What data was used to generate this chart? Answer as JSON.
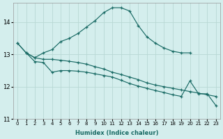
{
  "xlabel": "Humidex (Indice chaleur)",
  "ylabel": "",
  "background_color": "#d4eeed",
  "grid_color": "#b8d8d5",
  "line_color": "#1a6b65",
  "xlim": [
    -0.5,
    23.5
  ],
  "ylim": [
    11.0,
    14.6
  ],
  "yticks": [
    11,
    12,
    13,
    14
  ],
  "xticks": [
    0,
    1,
    2,
    3,
    4,
    5,
    6,
    7,
    8,
    9,
    10,
    11,
    12,
    13,
    14,
    15,
    16,
    17,
    18,
    19,
    20,
    21,
    22,
    23
  ],
  "line1_x": [
    0,
    1,
    2,
    3,
    4,
    5,
    6,
    7,
    8,
    9,
    10,
    11,
    12,
    13,
    14,
    15,
    16,
    17,
    18,
    19,
    20
  ],
  "line1_y": [
    13.35,
    13.05,
    12.9,
    13.05,
    13.15,
    13.4,
    13.5,
    13.65,
    13.85,
    14.05,
    14.3,
    14.45,
    14.45,
    14.35,
    13.9,
    13.55,
    13.35,
    13.2,
    13.1,
    13.05,
    13.05
  ],
  "line2_x": [
    0,
    1,
    2,
    3,
    4,
    5,
    6,
    7,
    8,
    9,
    10,
    11,
    12,
    13,
    14,
    15,
    16,
    17,
    18,
    19,
    20,
    21,
    22,
    23
  ],
  "line2_y": [
    13.35,
    13.05,
    12.9,
    12.85,
    12.85,
    12.82,
    12.79,
    12.75,
    12.7,
    12.62,
    12.55,
    12.45,
    12.38,
    12.3,
    12.22,
    12.12,
    12.05,
    12.0,
    11.95,
    11.9,
    11.85,
    11.8,
    11.75,
    11.7
  ],
  "line3_x": [
    1,
    2,
    3,
    4,
    5,
    6,
    7,
    8,
    9,
    10,
    11,
    12,
    13,
    14,
    15,
    16,
    17,
    18,
    19,
    20,
    21,
    22,
    23
  ],
  "line3_y": [
    13.05,
    12.78,
    12.75,
    12.45,
    12.5,
    12.5,
    12.48,
    12.45,
    12.4,
    12.35,
    12.3,
    12.2,
    12.1,
    12.02,
    11.95,
    11.88,
    11.82,
    11.75,
    11.7,
    12.18,
    11.78,
    11.78,
    11.42
  ]
}
